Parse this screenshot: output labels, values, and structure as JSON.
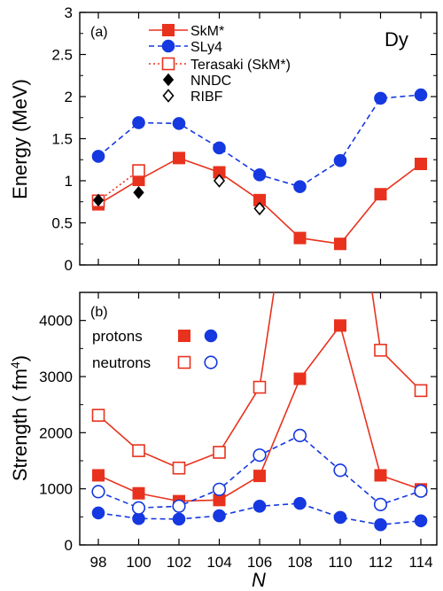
{
  "colors": {
    "red": "#e8321e",
    "blue": "#1538e0",
    "black": "#000000"
  },
  "xaxis": {
    "label": "N",
    "ticks": [
      "98",
      "100",
      "102",
      "104",
      "106",
      "108",
      "110",
      "112",
      "114"
    ]
  },
  "chart_data": [
    {
      "type": "line",
      "panel_label": "(a)",
      "annotation": "Dy",
      "ylabel": "Energy (MeV)",
      "ylim": [
        0,
        3
      ],
      "yticks": [
        "0",
        "0.5",
        "1",
        "1.5",
        "2",
        "2.5",
        "3"
      ],
      "x": [
        98,
        100,
        102,
        104,
        106,
        108,
        110,
        112,
        114
      ],
      "series": [
        {
          "name": "SkM*",
          "color": "#e8321e",
          "line": "solid",
          "marker": "square-filled",
          "points": [
            [
              98,
              0.72
            ],
            [
              100,
              1.01
            ],
            [
              102,
              1.27
            ],
            [
              104,
              1.1
            ],
            [
              106,
              0.77
            ],
            [
              108,
              0.32
            ],
            [
              110,
              0.25
            ],
            [
              112,
              0.84
            ],
            [
              114,
              1.2
            ]
          ]
        },
        {
          "name": "SLy4",
          "color": "#1538e0",
          "line": "dashed",
          "marker": "circle-filled",
          "points": [
            [
              98,
              1.29
            ],
            [
              100,
              1.69
            ],
            [
              102,
              1.68
            ],
            [
              104,
              1.39
            ],
            [
              106,
              1.07
            ],
            [
              108,
              0.93
            ],
            [
              110,
              1.24
            ],
            [
              112,
              1.98
            ],
            [
              114,
              2.02
            ]
          ]
        },
        {
          "name": "Terasaki (SkM*)",
          "color": "#e8321e",
          "line": "dotted",
          "marker": "square-open",
          "points": [
            [
              98,
              0.76
            ],
            [
              100,
              1.12
            ]
          ]
        },
        {
          "name": "NNDC",
          "color": "#000000",
          "line": "none",
          "marker": "diamond-filled",
          "points": [
            [
              98,
              0.77
            ],
            [
              100,
              0.86
            ]
          ]
        },
        {
          "name": "RIBF",
          "color": "#000000",
          "line": "none",
          "marker": "diamond-open",
          "points": [
            [
              104,
              1.0
            ],
            [
              106,
              0.67
            ]
          ]
        }
      ]
    },
    {
      "type": "line",
      "panel_label": "(b)",
      "ylabel": "Strength ( fm",
      "ylabel_sup": "4",
      "ylabel_end": ")",
      "ylim": [
        0,
        4500
      ],
      "yticks": [
        "0",
        "1000",
        "2000",
        "3000",
        "4000"
      ],
      "x": [
        98,
        100,
        102,
        104,
        106,
        108,
        110,
        112,
        114
      ],
      "legend": {
        "protons": "protons",
        "neutrons": "neutrons"
      },
      "series": [
        {
          "group": "protons",
          "model": "SkM*",
          "color": "#e8321e",
          "line": "solid",
          "marker": "square-filled",
          "points": [
            [
              98,
              1240
            ],
            [
              100,
              920
            ],
            [
              102,
              780
            ],
            [
              104,
              800
            ],
            [
              106,
              1230
            ],
            [
              108,
              2960
            ],
            [
              110,
              3910
            ],
            [
              112,
              1240
            ],
            [
              114,
              990
            ]
          ]
        },
        {
          "group": "neutrons",
          "model": "SkM*",
          "color": "#e8321e",
          "line": "solid",
          "marker": "square-open",
          "points": [
            [
              98,
              2310
            ],
            [
              100,
              1680
            ],
            [
              102,
              1370
            ],
            [
              104,
              1650
            ],
            [
              106,
              2810
            ],
            [
              107,
              5200
            ],
            [
              111.3,
              5200
            ],
            [
              112,
              3470
            ],
            [
              114,
              2750
            ]
          ]
        },
        {
          "group": "protons",
          "model": "SLy4",
          "color": "#1538e0",
          "line": "dashed",
          "marker": "circle-filled",
          "points": [
            [
              98,
              570
            ],
            [
              100,
              470
            ],
            [
              102,
              460
            ],
            [
              104,
              520
            ],
            [
              106,
              690
            ],
            [
              108,
              740
            ],
            [
              110,
              490
            ],
            [
              112,
              360
            ],
            [
              114,
              430
            ]
          ]
        },
        {
          "group": "neutrons",
          "model": "SLy4",
          "color": "#1538e0",
          "line": "dashed",
          "marker": "circle-open",
          "points": [
            [
              98,
              950
            ],
            [
              100,
              660
            ],
            [
              102,
              690
            ],
            [
              104,
              990
            ],
            [
              106,
              1600
            ],
            [
              108,
              1950
            ],
            [
              110,
              1330
            ],
            [
              112,
              720
            ],
            [
              114,
              960
            ]
          ]
        }
      ]
    }
  ]
}
